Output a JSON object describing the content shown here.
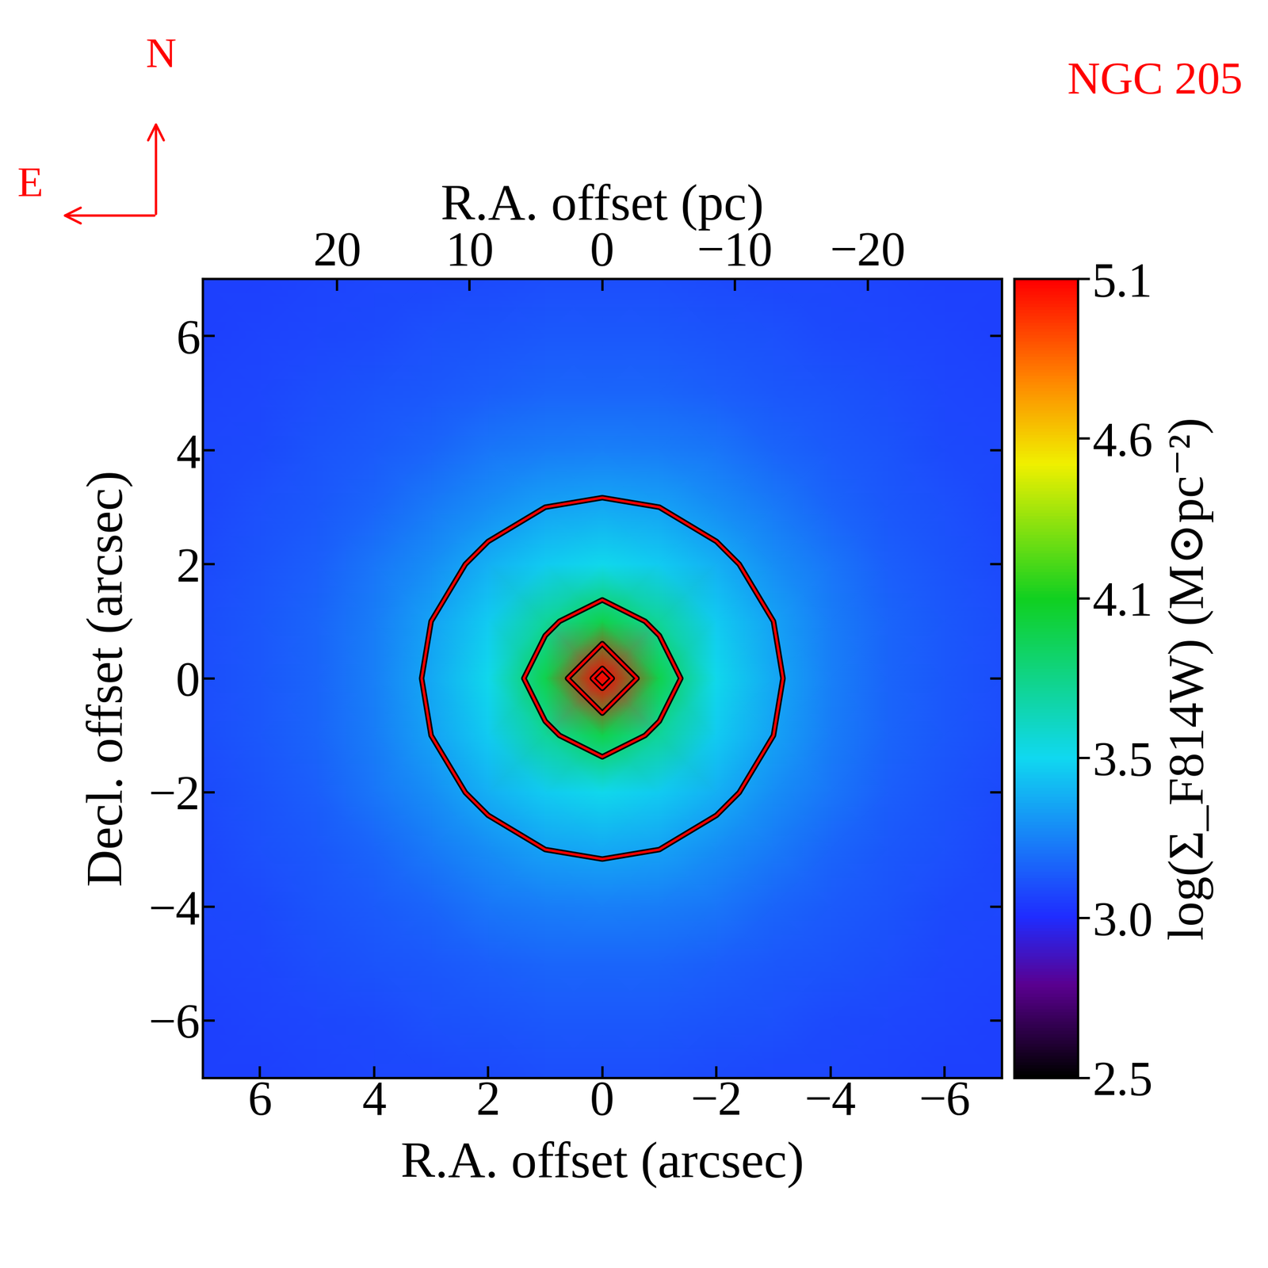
{
  "chart_data": {
    "type": "heatmap",
    "title": "NGC 205",
    "compass": {
      "north": "N",
      "east": "E"
    },
    "xlabel": "R.A. offset (arcsec)",
    "ylabel": "Decl. offset (arcsec)",
    "x2label": "R.A. offset (pc)",
    "colorbar_label": "log(Σ_F814W) (M⊙pc⁻²)",
    "x": [
      -7,
      -6,
      -5,
      -4,
      -3,
      -2,
      -1,
      0,
      1,
      2,
      3,
      4,
      5,
      6,
      7
    ],
    "y": [
      7,
      6,
      5,
      4,
      3,
      2,
      1,
      0,
      -1,
      -2,
      -3,
      -4,
      -5,
      -6,
      -7
    ],
    "cells": [
      [
        3.08,
        3.08,
        3.09,
        3.1,
        3.1,
        3.11,
        3.12,
        3.12,
        3.12,
        3.11,
        3.1,
        3.1,
        3.09,
        3.08,
        3.08
      ],
      [
        3.08,
        3.09,
        3.1,
        3.11,
        3.13,
        3.14,
        3.15,
        3.15,
        3.15,
        3.14,
        3.13,
        3.11,
        3.1,
        3.09,
        3.08
      ],
      [
        3.09,
        3.1,
        3.12,
        3.14,
        3.16,
        3.18,
        3.2,
        3.2,
        3.2,
        3.18,
        3.16,
        3.14,
        3.12,
        3.1,
        3.09
      ],
      [
        3.1,
        3.11,
        3.14,
        3.17,
        3.2,
        3.25,
        3.27,
        3.28,
        3.27,
        3.25,
        3.2,
        3.17,
        3.14,
        3.11,
        3.1
      ],
      [
        3.1,
        3.13,
        3.16,
        3.2,
        3.26,
        3.32,
        3.38,
        3.4,
        3.38,
        3.32,
        3.26,
        3.2,
        3.16,
        3.13,
        3.1
      ],
      [
        3.11,
        3.14,
        3.18,
        3.25,
        3.32,
        3.42,
        3.5,
        3.55,
        3.5,
        3.42,
        3.32,
        3.25,
        3.18,
        3.14,
        3.11
      ],
      [
        3.12,
        3.15,
        3.2,
        3.27,
        3.38,
        3.5,
        3.75,
        3.95,
        3.75,
        3.5,
        3.38,
        3.27,
        3.2,
        3.15,
        3.12
      ],
      [
        3.12,
        3.15,
        3.2,
        3.28,
        3.4,
        3.55,
        3.95,
        5.1,
        3.95,
        3.55,
        3.4,
        3.28,
        3.2,
        3.15,
        3.12
      ],
      [
        3.12,
        3.15,
        3.2,
        3.27,
        3.38,
        3.5,
        3.75,
        3.95,
        3.75,
        3.5,
        3.38,
        3.27,
        3.2,
        3.15,
        3.12
      ],
      [
        3.11,
        3.14,
        3.18,
        3.25,
        3.32,
        3.42,
        3.5,
        3.55,
        3.5,
        3.42,
        3.32,
        3.25,
        3.18,
        3.14,
        3.11
      ],
      [
        3.1,
        3.13,
        3.16,
        3.2,
        3.26,
        3.32,
        3.38,
        3.4,
        3.38,
        3.32,
        3.26,
        3.2,
        3.16,
        3.13,
        3.1
      ],
      [
        3.1,
        3.11,
        3.14,
        3.17,
        3.2,
        3.25,
        3.27,
        3.28,
        3.27,
        3.25,
        3.2,
        3.17,
        3.14,
        3.11,
        3.1
      ],
      [
        3.09,
        3.1,
        3.12,
        3.14,
        3.16,
        3.18,
        3.2,
        3.2,
        3.2,
        3.18,
        3.16,
        3.14,
        3.12,
        3.1,
        3.09
      ],
      [
        3.08,
        3.09,
        3.1,
        3.11,
        3.13,
        3.14,
        3.15,
        3.15,
        3.15,
        3.14,
        3.13,
        3.11,
        3.1,
        3.09,
        3.08
      ],
      [
        3.08,
        3.08,
        3.09,
        3.1,
        3.1,
        3.11,
        3.12,
        3.12,
        3.12,
        3.11,
        3.1,
        3.1,
        3.09,
        3.08,
        3.08
      ]
    ],
    "contour_levels": [
      3.38,
      3.8,
      4.4,
      4.9
    ],
    "xlim": [
      7,
      -7
    ],
    "ylim": [
      -7,
      7
    ],
    "xticks": [
      6,
      4,
      2,
      0,
      {
        "value": -2,
        "label": "−2"
      },
      {
        "value": -4,
        "label": "−4"
      },
      {
        "value": -6,
        "label": "−6"
      }
    ],
    "yticks": [
      {
        "value": -6,
        "label": "−6"
      },
      {
        "value": -4,
        "label": "−4"
      },
      {
        "value": -2,
        "label": "−2"
      },
      0,
      2,
      4,
      6
    ],
    "x2lim": [
      30.1,
      -30.1
    ],
    "x2ticks": [
      20,
      10,
      0,
      {
        "value": -10,
        "label": "−10"
      },
      {
        "value": -20,
        "label": "−20"
      }
    ],
    "colorbar_range": [
      2.5,
      5.1
    ],
    "colorbar_ticks": [
      2.5,
      {
        "value": 3.02,
        "label": "3.0"
      },
      {
        "value": 3.54,
        "label": "3.5"
      },
      {
        "value": 4.06,
        "label": "4.1"
      },
      {
        "value": 4.58,
        "label": "4.6"
      },
      5.1
    ]
  }
}
